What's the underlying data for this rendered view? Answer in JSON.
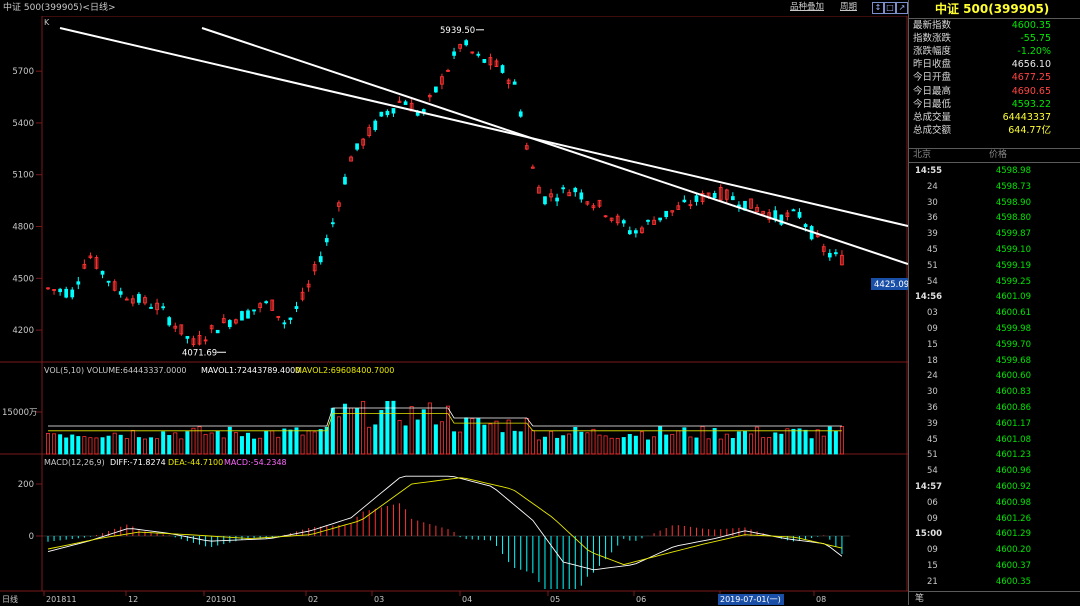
{
  "window": {
    "title": "中证 500(399905)<日线>",
    "buttons": [
      "品种叠加",
      "周期"
    ],
    "icons": [
      "↕",
      "□",
      "↗"
    ]
  },
  "panel": {
    "title": "中证 500(399905)",
    "quote": [
      {
        "label": "最新指数",
        "value": "4600.35",
        "color": "#00e600"
      },
      {
        "label": "指数涨跌",
        "value": "-55.75",
        "color": "#00e600"
      },
      {
        "label": "涨跌幅度",
        "value": "-1.20%",
        "color": "#00e600"
      },
      {
        "label": "昨日收盘",
        "value": "4656.10",
        "color": "#e8e8e8"
      },
      {
        "label": "今日开盘",
        "value": "4677.25",
        "color": "#ff4444"
      },
      {
        "label": "今日最高",
        "value": "4690.65",
        "color": "#ff4444"
      },
      {
        "label": "今日最低",
        "value": "4593.22",
        "color": "#00e600"
      },
      {
        "label": "总成交量",
        "value": "64443337",
        "color": "#ffff33"
      },
      {
        "label": "总成交额",
        "value": "644.77亿",
        "color": "#ffff33"
      }
    ],
    "tick_header": [
      "北京",
      "价格"
    ],
    "ticks": [
      {
        "time": "14:55",
        "price": "4598.98",
        "bold": true
      },
      {
        "time": "24",
        "price": "4598.73"
      },
      {
        "time": "30",
        "price": "4598.90"
      },
      {
        "time": "36",
        "price": "4598.80"
      },
      {
        "time": "39",
        "price": "4599.87"
      },
      {
        "time": "45",
        "price": "4599.10"
      },
      {
        "time": "51",
        "price": "4599.19"
      },
      {
        "time": "54",
        "price": "4599.25"
      },
      {
        "time": "14:56",
        "price": "4601.09",
        "bold": true
      },
      {
        "time": "03",
        "price": "4600.61"
      },
      {
        "time": "09",
        "price": "4599.98"
      },
      {
        "time": "15",
        "price": "4599.70"
      },
      {
        "time": "18",
        "price": "4599.68"
      },
      {
        "time": "24",
        "price": "4600.60"
      },
      {
        "time": "30",
        "price": "4600.83"
      },
      {
        "time": "36",
        "price": "4600.86"
      },
      {
        "time": "39",
        "price": "4601.17"
      },
      {
        "time": "45",
        "price": "4601.08"
      },
      {
        "time": "51",
        "price": "4601.23"
      },
      {
        "time": "54",
        "price": "4600.96"
      },
      {
        "time": "14:57",
        "price": "4600.92",
        "bold": true
      },
      {
        "time": "06",
        "price": "4600.98"
      },
      {
        "time": "09",
        "price": "4601.26"
      },
      {
        "time": "15:00",
        "price": "4601.29",
        "bold": true
      },
      {
        "time": "09",
        "price": "4600.20"
      },
      {
        "time": "15",
        "price": "4600.37"
      },
      {
        "time": "21",
        "price": "4600.35"
      }
    ],
    "corner": "笔"
  },
  "chart_data": {
    "type": "candlestick",
    "k_label": "K",
    "price_ticks": [
      5700,
      5400,
      5100,
      4800,
      4500,
      4200
    ],
    "ylim": [
      4050,
      5950
    ],
    "high_annotation": "5939.50",
    "low_annotation": "4071.69",
    "current_tag": "4425.09",
    "x_labels": [
      "201811",
      "12",
      "201901",
      "02",
      "03",
      "04",
      "05",
      "06",
      "07",
      "08"
    ],
    "x_label_prefix": "日线",
    "cursor_date": "2019-07-01(一)",
    "volume_label": {
      "a": "VOL(5,10) VOLUME:64443337.0000",
      "b": "MAVOL1:72443789.4000",
      "c": "MAVOL2:69608400.7000"
    },
    "volume_tick": "15000万",
    "macd_label": {
      "a": "MACD(12,26,9)",
      "b": "DIFF:-71.8274",
      "c": "DEA:-44.7100",
      "d": "MACD:-54.2348"
    },
    "macd_ticks": [
      200,
      0
    ],
    "colors": {
      "up": "#ff3232",
      "down": "#00ffff",
      "ma1": "#ffffff",
      "ma2": "#e8e800",
      "trend": "#ffffff"
    }
  }
}
